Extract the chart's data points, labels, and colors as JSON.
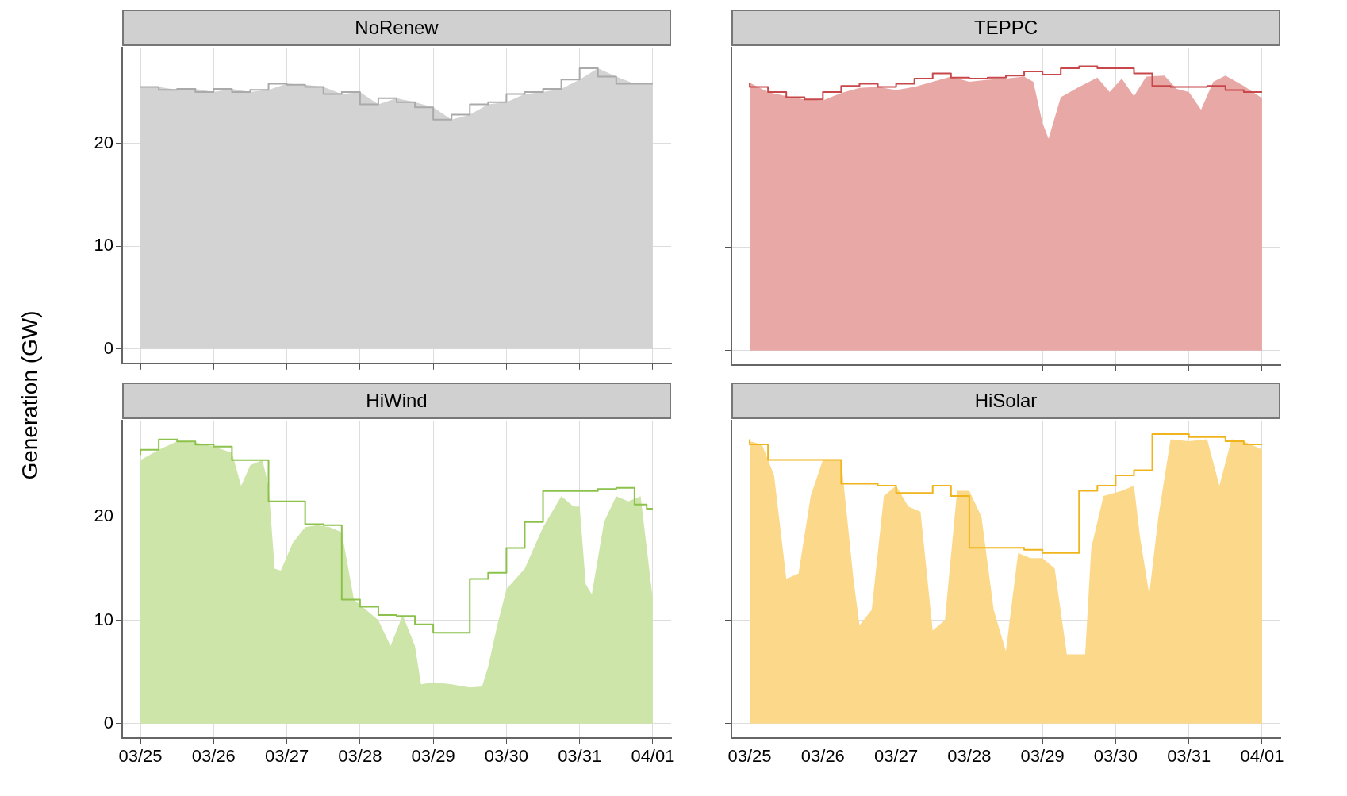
{
  "chart_data": [
    {
      "type": "area",
      "title": "NoRenew",
      "ylabel": "Generation (GW)",
      "tick_labels": "y",
      "grid": true,
      "xlim": [
        "--03-24T18:00",
        "--04-01T06:00"
      ],
      "ylim": [
        -1.4,
        29.3
      ],
      "yticks": [
        0,
        10,
        20
      ],
      "xticks": [
        {
          "value": "--03-25",
          "label": "03/25"
        },
        {
          "value": "--03-26",
          "label": "03/26"
        },
        {
          "value": "--03-27",
          "label": "03/27"
        },
        {
          "value": "--03-28",
          "label": "03/28"
        },
        {
          "value": "--03-29",
          "label": "03/29"
        },
        {
          "value": "--03-30",
          "label": "03/30"
        },
        {
          "value": "--03-31",
          "label": "03/31"
        },
        {
          "value": "--04-01",
          "label": "04/01"
        }
      ],
      "series": [
        {
          "type": "area",
          "color": "#d3d3d3",
          "x": [
            "--03-25T00:00",
            "--03-25T06:00",
            "--03-25T12:00",
            "--03-25T18:00",
            "--03-26T00:00",
            "--03-26T06:00",
            "--03-26T12:00",
            "--03-26T18:00",
            "--03-27T00:00",
            "--03-27T06:00",
            "--03-27T12:00",
            "--03-27T18:00",
            "--03-28T00:00",
            "--03-28T06:00",
            "--03-28T12:00",
            "--03-28T18:00",
            "--03-29T00:00",
            "--03-29T06:00",
            "--03-29T12:00",
            "--03-29T18:00",
            "--03-30T00:00",
            "--03-30T06:00",
            "--03-30T12:00",
            "--03-30T18:00",
            "--03-31T00:00",
            "--03-31T06:00",
            "--03-31T12:00",
            "--03-31T18:00",
            "--04-01T00:00"
          ],
          "values": [
            25.5,
            25.5,
            25.2,
            25.3,
            25.0,
            25.3,
            25.0,
            25.2,
            25.8,
            25.7,
            25.5,
            24.8,
            25.0,
            23.8,
            24.4,
            24.0,
            23.5,
            22.3,
            22.8,
            23.8,
            24.0,
            24.8,
            25.0,
            25.3,
            26.2,
            27.3,
            26.5,
            25.8,
            25.8
          ]
        },
        {
          "type": "step",
          "color": "#aaaaaa",
          "x": [
            "--03-25T00:00",
            "--03-25T06:00",
            "--03-25T12:00",
            "--03-25T18:00",
            "--03-26T00:00",
            "--03-26T06:00",
            "--03-26T12:00",
            "--03-26T18:00",
            "--03-27T00:00",
            "--03-27T06:00",
            "--03-27T12:00",
            "--03-27T18:00",
            "--03-28T00:00",
            "--03-28T06:00",
            "--03-28T12:00",
            "--03-28T18:00",
            "--03-29T00:00",
            "--03-29T06:00",
            "--03-29T12:00",
            "--03-29T18:00",
            "--03-30T00:00",
            "--03-30T06:00",
            "--03-30T12:00",
            "--03-30T18:00",
            "--03-31T00:00",
            "--03-31T06:00",
            "--03-31T12:00",
            "--03-31T18:00",
            "--04-01T00:00"
          ],
          "values": [
            25.5,
            25.5,
            25.2,
            25.3,
            25.0,
            25.3,
            25.0,
            25.2,
            25.8,
            25.7,
            25.5,
            24.8,
            25.0,
            23.8,
            24.4,
            24.0,
            23.5,
            22.3,
            22.8,
            23.8,
            24.0,
            24.8,
            25.0,
            25.3,
            26.2,
            27.3,
            26.5,
            25.8,
            25.8
          ]
        }
      ]
    },
    {
      "type": "area",
      "title": "TEPPC",
      "tick_labels": false,
      "grid": true,
      "xlim": [
        "--03-24T18:00",
        "--04-01T06:00"
      ],
      "ylim": [
        -1.4,
        29.3
      ],
      "yticks": [
        0,
        10,
        20
      ],
      "xticks": [
        {
          "value": "--03-25",
          "label": "03/25"
        },
        {
          "value": "--03-26",
          "label": "03/26"
        },
        {
          "value": "--03-27",
          "label": "03/27"
        },
        {
          "value": "--03-28",
          "label": "03/28"
        },
        {
          "value": "--03-29",
          "label": "03/29"
        },
        {
          "value": "--03-30",
          "label": "03/30"
        },
        {
          "value": "--03-31",
          "label": "03/31"
        },
        {
          "value": "--04-01",
          "label": "04/01"
        }
      ],
      "series": [
        {
          "type": "area",
          "color": "#e8a8a5",
          "x": [
            "--03-25T00:00",
            "--03-25T06:00",
            "--03-25T12:00",
            "--03-25T18:00",
            "--03-26T00:00",
            "--03-26T06:00",
            "--03-26T12:00",
            "--03-26T18:00",
            "--03-27T00:00",
            "--03-27T06:00",
            "--03-27T12:00",
            "--03-27T18:00",
            "--03-28T00:00",
            "--03-28T06:00",
            "--03-28T12:00",
            "--03-28T18:00",
            "--03-28T21:00",
            "--03-29T00:00",
            "--03-29T02:00",
            "--03-29T06:00",
            "--03-29T12:00",
            "--03-29T18:00",
            "--03-29T22:00",
            "--03-30T02:00",
            "--03-30T06:00",
            "--03-30T10:00",
            "--03-30T16:00",
            "--03-30T20:00",
            "--03-31T00:00",
            "--03-31T04:00",
            "--03-31T08:00",
            "--03-31T12:00",
            "--03-31T18:00",
            "--04-01T00:00"
          ],
          "values": [
            25.9,
            25.0,
            24.6,
            24.3,
            24.2,
            24.9,
            25.4,
            25.5,
            25.2,
            25.5,
            26.0,
            26.5,
            26.0,
            26.2,
            26.3,
            26.5,
            26.0,
            22.0,
            20.5,
            24.5,
            25.5,
            26.4,
            25.0,
            26.3,
            24.6,
            26.5,
            26.6,
            25.3,
            25.0,
            23.3,
            26.0,
            26.6,
            25.6,
            24.4
          ]
        },
        {
          "type": "step",
          "color": "#c8474a",
          "x": [
            "--03-25T00:00",
            "--03-25T06:00",
            "--03-25T12:00",
            "--03-25T18:00",
            "--03-26T00:00",
            "--03-26T06:00",
            "--03-26T12:00",
            "--03-26T18:00",
            "--03-27T00:00",
            "--03-27T06:00",
            "--03-27T12:00",
            "--03-27T18:00",
            "--03-28T00:00",
            "--03-28T06:00",
            "--03-28T12:00",
            "--03-28T18:00",
            "--03-29T00:00",
            "--03-29T06:00",
            "--03-29T12:00",
            "--03-29T18:00",
            "--03-30T00:00",
            "--03-30T06:00",
            "--03-30T12:00",
            "--03-30T18:00",
            "--03-31T00:00",
            "--03-31T06:00",
            "--03-31T12:00",
            "--03-31T18:00",
            "--04-01T00:00"
          ],
          "values": [
            25.9,
            25.5,
            25.0,
            24.5,
            24.3,
            25.0,
            25.6,
            25.8,
            25.5,
            25.8,
            26.3,
            26.8,
            26.4,
            26.3,
            26.4,
            26.6,
            27.0,
            26.7,
            27.3,
            27.5,
            27.3,
            27.3,
            26.8,
            25.6,
            25.5,
            25.5,
            25.6,
            25.2,
            25.0
          ]
        }
      ]
    },
    {
      "type": "area",
      "title": "HiWind",
      "grid": true,
      "xlim": [
        "--03-24T18:00",
        "--04-01T06:00"
      ],
      "ylim": [
        -1.4,
        29.3
      ],
      "yticks": [
        0,
        10,
        20
      ],
      "xticks": [
        {
          "value": "--03-25",
          "label": "03/25"
        },
        {
          "value": "--03-26",
          "label": "03/26"
        },
        {
          "value": "--03-27",
          "label": "03/27"
        },
        {
          "value": "--03-28",
          "label": "03/28"
        },
        {
          "value": "--03-29",
          "label": "03/29"
        },
        {
          "value": "--03-30",
          "label": "03/30"
        },
        {
          "value": "--03-31",
          "label": "03/31"
        },
        {
          "value": "--04-01",
          "label": "04/01"
        }
      ],
      "series": [
        {
          "type": "area",
          "color": "#cde5a8",
          "x": [
            "--03-25T00:00",
            "--03-25T06:00",
            "--03-25T12:00",
            "--03-25T18:00",
            "--03-26T00:00",
            "--03-26T06:00",
            "--03-26T09:00",
            "--03-26T12:00",
            "--03-26T16:00",
            "--03-26T18:00",
            "--03-26T20:00",
            "--03-26T22:00",
            "--03-27T02:00",
            "--03-27T06:00",
            "--03-27T10:00",
            "--03-27T14:00",
            "--03-27T18:00",
            "--03-27T22:00",
            "--03-28T00:00",
            "--03-28T06:00",
            "--03-28T10:00",
            "--03-28T14:00",
            "--03-28T16:00",
            "--03-28T18:00",
            "--03-28T20:00",
            "--03-29T00:00",
            "--03-29T06:00",
            "--03-29T12:00",
            "--03-29T16:00",
            "--03-29T18:00",
            "--03-29T21:00",
            "--03-30T00:00",
            "--03-30T06:00",
            "--03-30T12:00",
            "--03-30T18:00",
            "--03-30T22:00",
            "--03-31T00:00",
            "--03-31T02:00",
            "--03-31T04:00",
            "--03-31T08:00",
            "--03-31T12:00",
            "--03-31T16:00",
            "--03-31T20:00",
            "--04-01T00:00"
          ],
          "values": [
            25.5,
            26.5,
            27.3,
            27.2,
            26.8,
            26.2,
            23.0,
            25.0,
            25.5,
            23.0,
            15.0,
            14.8,
            17.5,
            19.0,
            19.2,
            19.0,
            18.5,
            12.0,
            11.5,
            10.0,
            7.5,
            10.5,
            9.0,
            7.5,
            3.8,
            4.0,
            3.8,
            3.5,
            3.6,
            5.5,
            9.5,
            13.0,
            15.0,
            19.0,
            22.0,
            21.0,
            21.0,
            13.5,
            12.5,
            19.5,
            22.0,
            21.5,
            22.0,
            12.0
          ]
        },
        {
          "type": "step",
          "color": "#8cc14c",
          "x": [
            "--03-25T00:00",
            "--03-25T06:00",
            "--03-25T12:00",
            "--03-25T18:00",
            "--03-26T00:00",
            "--03-26T06:00",
            "--03-26T12:00",
            "--03-26T18:00",
            "--03-27T00:00",
            "--03-27T06:00",
            "--03-27T12:00",
            "--03-27T18:00",
            "--03-28T00:00",
            "--03-28T06:00",
            "--03-28T12:00",
            "--03-28T18:00",
            "--03-29T00:00",
            "--03-29T06:00",
            "--03-29T12:00",
            "--03-29T18:00",
            "--03-30T00:00",
            "--03-30T06:00",
            "--03-30T12:00",
            "--03-30T18:00",
            "--03-31T00:00",
            "--03-31T06:00",
            "--03-31T12:00",
            "--03-31T18:00",
            "--03-31T22:00",
            "--04-01T00:00"
          ],
          "values": [
            26.0,
            26.5,
            27.5,
            27.3,
            27.0,
            26.8,
            25.5,
            25.5,
            21.5,
            21.5,
            19.3,
            19.2,
            12.0,
            11.3,
            10.5,
            10.4,
            9.6,
            8.8,
            8.8,
            14.0,
            14.6,
            17.0,
            19.5,
            22.5,
            22.5,
            22.5,
            22.7,
            22.8,
            21.2,
            20.8
          ]
        }
      ]
    },
    {
      "type": "area",
      "title": "HiSolar",
      "tick_labels": "x",
      "grid": true,
      "xlim": [
        "--03-24T18:00",
        "--04-01T06:00"
      ],
      "ylim": [
        -1.4,
        29.3
      ],
      "yticks": [
        0,
        10,
        20
      ],
      "xticks": [
        {
          "value": "--03-25",
          "label": "03/25"
        },
        {
          "value": "--03-26",
          "label": "03/26"
        },
        {
          "value": "--03-27",
          "label": "03/27"
        },
        {
          "value": "--03-28",
          "label": "03/28"
        },
        {
          "value": "--03-29",
          "label": "03/29"
        },
        {
          "value": "--03-30",
          "label": "03/30"
        },
        {
          "value": "--03-31",
          "label": "03/31"
        },
        {
          "value": "--04-01",
          "label": "04/01"
        }
      ],
      "series": [
        {
          "type": "area",
          "color": "#fcd98a",
          "x": [
            "--03-25T00:00",
            "--03-25T04:00",
            "--03-25T08:00",
            "--03-25T12:00",
            "--03-25T16:00",
            "--03-25T20:00",
            "--03-26T00:00",
            "--03-26T06:00",
            "--03-26T10:00",
            "--03-26T12:00",
            "--03-26T16:00",
            "--03-26T20:00",
            "--03-27T00:00",
            "--03-27T04:00",
            "--03-27T08:00",
            "--03-27T12:00",
            "--03-27T16:00",
            "--03-27T20:00",
            "--03-28T00:00",
            "--03-28T04:00",
            "--03-28T08:00",
            "--03-28T12:00",
            "--03-28T16:00",
            "--03-28T20:00",
            "--03-29T00:00",
            "--03-29T04:00",
            "--03-29T08:00",
            "--03-29T14:00",
            "--03-29T16:00",
            "--03-29T20:00",
            "--03-30T02:00",
            "--03-30T06:00",
            "--03-30T08:00",
            "--03-30T11:00",
            "--03-30T14:00",
            "--03-30T18:00",
            "--03-31T00:00",
            "--03-31T06:00",
            "--03-31T10:00",
            "--03-31T14:00",
            "--03-31T18:00",
            "--04-01T00:00"
          ],
          "values": [
            27.3,
            27.0,
            24.0,
            14.0,
            14.5,
            22.0,
            25.5,
            25.5,
            14.0,
            9.5,
            11.0,
            22.0,
            23.0,
            21.0,
            20.5,
            9.0,
            10.0,
            22.5,
            22.5,
            20.0,
            11.0,
            7.0,
            16.5,
            16.0,
            16.0,
            15.0,
            6.7,
            6.7,
            17.0,
            22.0,
            22.5,
            23.0,
            18.0,
            12.5,
            20.0,
            27.5,
            27.3,
            27.5,
            23.0,
            27.5,
            27.3,
            26.5
          ]
        },
        {
          "type": "step",
          "color": "#f0b41c",
          "x": [
            "--03-25T00:00",
            "--03-25T06:00",
            "--03-25T12:00",
            "--03-25T18:00",
            "--03-26T00:00",
            "--03-26T06:00",
            "--03-26T12:00",
            "--03-26T18:00",
            "--03-27T00:00",
            "--03-27T06:00",
            "--03-27T12:00",
            "--03-27T18:00",
            "--03-28T00:00",
            "--03-28T06:00",
            "--03-28T12:00",
            "--03-28T18:00",
            "--03-29T00:00",
            "--03-29T06:00",
            "--03-29T12:00",
            "--03-29T18:00",
            "--03-30T00:00",
            "--03-30T06:00",
            "--03-30T12:00",
            "--03-30T18:00",
            "--03-31T00:00",
            "--03-31T06:00",
            "--03-31T12:00",
            "--03-31T18:00",
            "--04-01T00:00"
          ],
          "values": [
            27.5,
            27.0,
            25.5,
            25.5,
            25.5,
            25.5,
            23.2,
            23.2,
            23.0,
            22.3,
            22.3,
            23.0,
            22.0,
            17.0,
            17.0,
            17.0,
            16.8,
            16.5,
            16.5,
            22.5,
            23.0,
            24.0,
            24.5,
            28.0,
            28.0,
            27.7,
            27.7,
            27.3,
            27.0
          ]
        }
      ]
    }
  ]
}
